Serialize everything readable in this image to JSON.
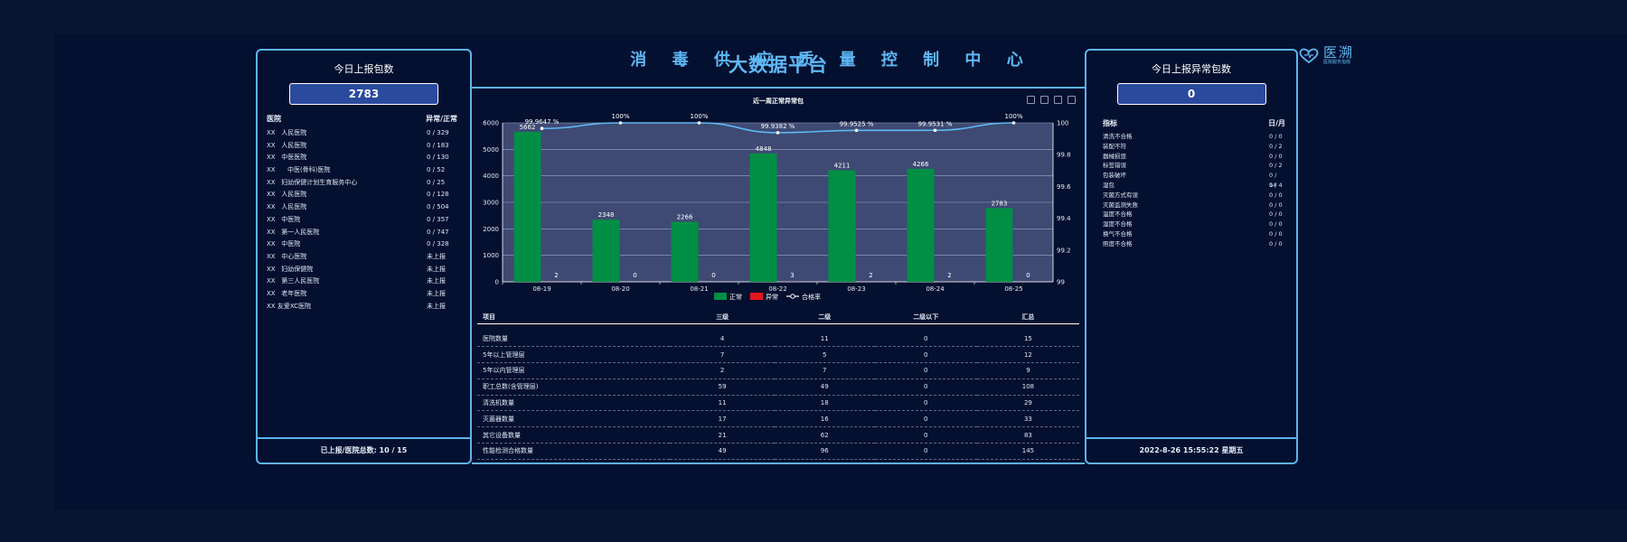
{
  "header": {
    "title": "消 毒 供 应 质 量 控 制 中 心"
  },
  "logo": {
    "name": "医溯",
    "sub": "医院服务指南"
  },
  "left_panel": {
    "title": "今日上报包数",
    "count": "2783",
    "col_hospital": "医院",
    "col_ratio": "异常/正常",
    "rows": [
      {
        "name": "XX   人民医院",
        "value": "0 / 329"
      },
      {
        "name": "XX   人民医院",
        "value": "0 / 183"
      },
      {
        "name": "XX   中医医院",
        "value": "0 / 130"
      },
      {
        "name": "XX      中医(骨科)医院",
        "value": "0 / 52"
      },
      {
        "name": "XX   妇幼保健计划生育服务中心",
        "value": "0 / 25"
      },
      {
        "name": "XX   人民医院",
        "value": "0 / 128"
      },
      {
        "name": "XX   人民医院",
        "value": "0 / 504"
      },
      {
        "name": "XX   中医院",
        "value": "0 / 357"
      },
      {
        "name": "XX   第一人民医院",
        "value": "0 / 747"
      },
      {
        "name": "XX   中医院",
        "value": "0 / 328"
      },
      {
        "name": "XX   中心医院",
        "value": "未上报"
      },
      {
        "name": "XX   妇幼保健院",
        "value": "未上报"
      },
      {
        "name": "XX   第三人民医院",
        "value": "未上报"
      },
      {
        "name": "XX   老年医院",
        "value": "未上报"
      },
      {
        "name": "XX 友爱XC医院",
        "value": "未上报"
      }
    ],
    "footer": "已上报/医院总数:  10 / 15"
  },
  "center": {
    "title": "大数据平台"
  },
  "chart_data": {
    "type": "bar",
    "title": "近一周正常异常包",
    "categories": [
      "08-19",
      "08-20",
      "08-21",
      "08-22",
      "08-23",
      "08-24",
      "08-25"
    ],
    "series": [
      {
        "name": "正常",
        "type": "bar",
        "color": "#008f45",
        "values": [
          5662,
          2348,
          2266,
          4848,
          4211,
          4266,
          2783
        ]
      },
      {
        "name": "异常",
        "type": "bar",
        "color": "#e6141e",
        "values": [
          2,
          0,
          0,
          3,
          2,
          2,
          0
        ]
      },
      {
        "name": "合格率",
        "type": "line",
        "color": "#5fb8f5",
        "values": [
          99.9647,
          100,
          100,
          99.9382,
          99.9525,
          99.9531,
          100
        ]
      }
    ],
    "rate_labels": [
      "99.9647 %",
      "100%",
      "100%",
      "99.9382 %",
      "99.9525 %",
      "99.9531 %",
      "100%"
    ],
    "ylim_left": [
      0,
      6000
    ],
    "yticks_left": [
      "0",
      "1000",
      "2000",
      "3000",
      "4000",
      "5000",
      "6000"
    ],
    "ylim_right": [
      99,
      100
    ],
    "yticks_right": [
      "99",
      "99.2",
      "99.4",
      "99.6",
      "99.8",
      "100"
    ],
    "legend_position": "bottom",
    "grid": true
  },
  "table": {
    "headers": [
      "项目",
      "三级",
      "二级",
      "二级以下",
      "汇总"
    ],
    "rows": [
      [
        "医院数量",
        "4",
        "11",
        "0",
        "15"
      ],
      [
        "5年以上管理层",
        "7",
        "5",
        "0",
        "12"
      ],
      [
        "5年以内管理层",
        "2",
        "7",
        "0",
        "9"
      ],
      [
        "职工总数(含管理层)",
        "59",
        "49",
        "0",
        "108"
      ],
      [
        "清洗机数量",
        "11",
        "18",
        "0",
        "29"
      ],
      [
        "灭菌器数量",
        "17",
        "16",
        "0",
        "33"
      ],
      [
        "其它设备数量",
        "21",
        "62",
        "0",
        "83"
      ],
      [
        "性能检测合格数量",
        "49",
        "96",
        "0",
        "145"
      ]
    ]
  },
  "right_panel": {
    "title": "今日上报异常包数",
    "count": "0",
    "col_metric": "指标",
    "col_period": "日/月",
    "rows": [
      {
        "name": "清洗不合格",
        "value": "0 / 0"
      },
      {
        "name": "装配不符",
        "value": "0 / 2"
      },
      {
        "name": "器械损毁",
        "value": "0 / 0"
      },
      {
        "name": "标签错误",
        "value": "0 / 2"
      },
      {
        "name": "包装破坏",
        "value": "0 / 14"
      },
      {
        "name": "湿包",
        "value": "0 / 4"
      },
      {
        "name": "灭菌方式有误",
        "value": "0 / 0"
      },
      {
        "name": "灭菌监测失败",
        "value": "0 / 0"
      },
      {
        "name": "温度不合格",
        "value": "0 / 0"
      },
      {
        "name": "湿度不合格",
        "value": "0 / 0"
      },
      {
        "name": "换气不合格",
        "value": "0 / 0"
      },
      {
        "name": "照度不合格",
        "value": "0 / 0"
      }
    ],
    "footer": "2022-8-26 15:55:22 星期五"
  }
}
